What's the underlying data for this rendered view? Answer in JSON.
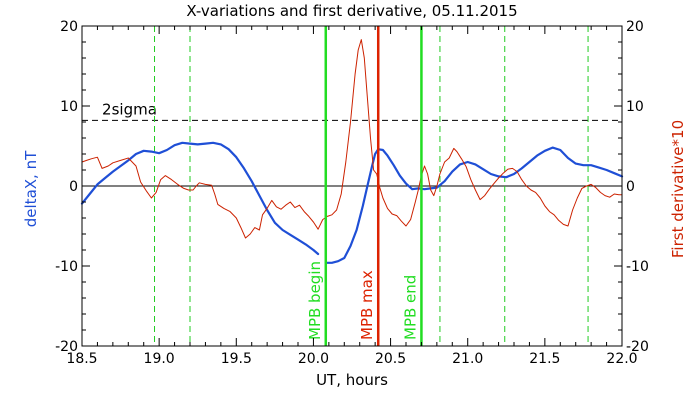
{
  "chart_data": {
    "type": "line",
    "title": "X-variations and first derivative, 05.11.2015",
    "xlabel": "UT, hours",
    "ylabel_left": "deltaX, nT",
    "ylabel_right": "First derivative*10",
    "xlim": [
      18.5,
      22.0
    ],
    "ylim": [
      -20,
      20
    ],
    "x_ticks": [
      "18.5",
      "19.0",
      "19.5",
      "20.0",
      "20.5",
      "21.0",
      "21.5",
      "22.0"
    ],
    "y_ticks_left": [
      "-20",
      "-10",
      "0",
      "10",
      "20"
    ],
    "y_ticks_right": [
      "-20",
      "-10",
      "0",
      "10",
      "20"
    ],
    "zero_line": 0,
    "threshold": {
      "label": "2sigma",
      "value": 8.2,
      "style": "dashed",
      "color": "#000000"
    },
    "colors": {
      "deltaX": "#1f4fd6",
      "derivative": "#cc2200",
      "mpb_boundary": "#22dd22",
      "mpb_max": "#dd2200",
      "green_dashed": "#22cc22"
    },
    "green_dashed_lines": [
      18.97,
      19.2,
      20.82,
      21.24,
      21.78
    ],
    "markers": [
      {
        "label": "MPB begin",
        "x": 20.08,
        "color": "#22dd22"
      },
      {
        "label": "MPB max",
        "x": 20.42,
        "color": "#dd2200"
      },
      {
        "label": "MPB end",
        "x": 20.7,
        "color": "#22dd22"
      }
    ],
    "series": [
      {
        "key": "deltaX",
        "axis": "left",
        "color": "#1f4fd6",
        "segments": [
          [
            [
              18.5,
              -2.2
            ],
            [
              18.55,
              -1.0
            ],
            [
              18.6,
              0.2
            ],
            [
              18.65,
              1.0
            ],
            [
              18.7,
              1.8
            ],
            [
              18.75,
              2.5
            ],
            [
              18.8,
              3.2
            ],
            [
              18.85,
              4.0
            ],
            [
              18.9,
              4.4
            ],
            [
              18.95,
              4.3
            ],
            [
              19.0,
              4.1
            ],
            [
              19.05,
              4.5
            ],
            [
              19.1,
              5.1
            ],
            [
              19.15,
              5.4
            ],
            [
              19.2,
              5.3
            ],
            [
              19.25,
              5.2
            ],
            [
              19.3,
              5.3
            ],
            [
              19.35,
              5.4
            ],
            [
              19.4,
              5.2
            ],
            [
              19.45,
              4.6
            ],
            [
              19.5,
              3.6
            ],
            [
              19.55,
              2.2
            ],
            [
              19.6,
              0.6
            ],
            [
              19.65,
              -1.2
            ],
            [
              19.7,
              -3.0
            ],
            [
              19.75,
              -4.6
            ],
            [
              19.8,
              -5.5
            ],
            [
              19.85,
              -6.1
            ],
            [
              19.9,
              -6.7
            ],
            [
              19.95,
              -7.3
            ],
            [
              20.0,
              -8.0
            ],
            [
              20.03,
              -8.5
            ]
          ],
          [
            [
              20.08,
              -9.6
            ],
            [
              20.12,
              -9.6
            ],
            [
              20.16,
              -9.4
            ],
            [
              20.2,
              -9.0
            ],
            [
              20.24,
              -7.5
            ],
            [
              20.28,
              -5.5
            ],
            [
              20.32,
              -2.5
            ],
            [
              20.35,
              0.0
            ],
            [
              20.38,
              2.5
            ],
            [
              20.4,
              4.0
            ],
            [
              20.42,
              4.6
            ],
            [
              20.45,
              4.5
            ],
            [
              20.48,
              3.8
            ],
            [
              20.52,
              2.6
            ],
            [
              20.56,
              1.3
            ],
            [
              20.6,
              0.3
            ],
            [
              20.64,
              -0.4
            ],
            [
              20.68,
              -0.3
            ],
            [
              20.72,
              -0.4
            ],
            [
              20.76,
              -0.3
            ],
            [
              20.8,
              -0.2
            ],
            [
              20.85,
              0.6
            ],
            [
              20.9,
              1.8
            ],
            [
              20.95,
              2.7
            ],
            [
              21.0,
              3.0
            ],
            [
              21.05,
              2.7
            ],
            [
              21.1,
              2.1
            ],
            [
              21.15,
              1.5
            ],
            [
              21.2,
              1.2
            ],
            [
              21.25,
              1.1
            ],
            [
              21.3,
              1.5
            ],
            [
              21.35,
              2.2
            ],
            [
              21.4,
              3.0
            ],
            [
              21.45,
              3.8
            ],
            [
              21.5,
              4.4
            ],
            [
              21.55,
              4.8
            ],
            [
              21.6,
              4.5
            ],
            [
              21.65,
              3.5
            ],
            [
              21.7,
              2.8
            ],
            [
              21.75,
              2.6
            ],
            [
              21.8,
              2.6
            ],
            [
              21.85,
              2.3
            ],
            [
              21.9,
              2.0
            ],
            [
              21.95,
              1.6
            ],
            [
              22.0,
              1.2
            ]
          ]
        ]
      },
      {
        "key": "derivative",
        "axis": "right",
        "color": "#cc2200",
        "segments": [
          [
            [
              18.5,
              3.0
            ],
            [
              18.53,
              3.2
            ],
            [
              18.56,
              3.4
            ],
            [
              18.6,
              3.6
            ],
            [
              18.63,
              2.2
            ],
            [
              18.67,
              2.5
            ],
            [
              18.7,
              2.9
            ],
            [
              18.75,
              3.2
            ],
            [
              18.8,
              3.5
            ],
            [
              18.85,
              2.5
            ],
            [
              18.88,
              0.5
            ],
            [
              18.92,
              -0.7
            ],
            [
              18.95,
              -1.5
            ],
            [
              18.98,
              -0.8
            ],
            [
              19.01,
              0.8
            ],
            [
              19.04,
              1.3
            ],
            [
              19.08,
              0.8
            ],
            [
              19.12,
              0.2
            ],
            [
              19.16,
              -0.3
            ],
            [
              19.19,
              -0.5
            ],
            [
              19.22,
              -0.5
            ],
            [
              19.24,
              0.0
            ],
            [
              19.26,
              0.4
            ],
            [
              19.3,
              0.2
            ],
            [
              19.34,
              0.1
            ],
            [
              19.36,
              -1.0
            ],
            [
              19.38,
              -2.3
            ],
            [
              19.42,
              -2.8
            ],
            [
              19.46,
              -3.2
            ],
            [
              19.5,
              -4.0
            ],
            [
              19.53,
              -5.2
            ],
            [
              19.56,
              -6.5
            ],
            [
              19.59,
              -6.0
            ],
            [
              19.62,
              -5.2
            ],
            [
              19.65,
              -5.5
            ],
            [
              19.67,
              -3.6
            ],
            [
              19.7,
              -2.8
            ],
            [
              19.73,
              -1.8
            ],
            [
              19.76,
              -2.6
            ],
            [
              19.79,
              -2.9
            ],
            [
              19.82,
              -2.4
            ],
            [
              19.85,
              -2.0
            ],
            [
              19.88,
              -2.7
            ],
            [
              19.91,
              -2.4
            ],
            [
              19.94,
              -3.2
            ],
            [
              19.97,
              -3.8
            ],
            [
              20.0,
              -4.5
            ],
            [
              20.03,
              -5.4
            ],
            [
              20.06,
              -4.2
            ],
            [
              20.09,
              -3.8
            ],
            [
              20.12,
              -3.6
            ],
            [
              20.15,
              -3.0
            ],
            [
              20.18,
              -1.0
            ],
            [
              20.21,
              3.0
            ],
            [
              20.24,
              8.0
            ],
            [
              20.27,
              14.0
            ],
            [
              20.29,
              17.0
            ],
            [
              20.31,
              18.3
            ],
            [
              20.33,
              16.0
            ],
            [
              20.35,
              11.0
            ],
            [
              20.37,
              6.0
            ],
            [
              20.39,
              2.0
            ],
            [
              20.41,
              1.5
            ],
            [
              20.43,
              -0.2
            ],
            [
              20.45,
              -1.5
            ],
            [
              20.48,
              -2.8
            ],
            [
              20.51,
              -3.5
            ],
            [
              20.54,
              -3.7
            ],
            [
              20.57,
              -4.4
            ],
            [
              20.6,
              -5.0
            ],
            [
              20.63,
              -4.2
            ],
            [
              20.66,
              -2.0
            ],
            [
              20.68,
              -0.5
            ],
            [
              20.7,
              1.3
            ],
            [
              20.72,
              2.5
            ],
            [
              20.74,
              1.5
            ],
            [
              20.76,
              -0.5
            ],
            [
              20.78,
              -1.2
            ],
            [
              20.8,
              0.0
            ],
            [
              20.82,
              1.5
            ],
            [
              20.85,
              3.0
            ],
            [
              20.88,
              3.5
            ],
            [
              20.91,
              4.7
            ],
            [
              20.93,
              4.3
            ],
            [
              20.96,
              3.4
            ],
            [
              20.99,
              2.4
            ],
            [
              21.02,
              0.8
            ],
            [
              21.05,
              -0.5
            ],
            [
              21.08,
              -1.7
            ],
            [
              21.11,
              -1.2
            ],
            [
              21.14,
              -0.4
            ],
            [
              21.17,
              0.3
            ],
            [
              21.2,
              1.0
            ],
            [
              21.23,
              1.6
            ],
            [
              21.26,
              2.1
            ],
            [
              21.29,
              2.2
            ],
            [
              21.32,
              1.8
            ],
            [
              21.35,
              0.8
            ],
            [
              21.38,
              0.0
            ],
            [
              21.41,
              -0.5
            ],
            [
              21.44,
              -0.8
            ],
            [
              21.47,
              -1.5
            ],
            [
              21.5,
              -2.5
            ],
            [
              21.53,
              -3.2
            ],
            [
              21.56,
              -3.6
            ],
            [
              21.59,
              -4.3
            ],
            [
              21.62,
              -4.8
            ],
            [
              21.65,
              -5.0
            ],
            [
              21.68,
              -3.0
            ],
            [
              21.71,
              -1.5
            ],
            [
              21.74,
              -0.3
            ],
            [
              21.77,
              0.0
            ],
            [
              21.8,
              0.2
            ],
            [
              21.83,
              -0.2
            ],
            [
              21.86,
              -0.8
            ],
            [
              21.89,
              -1.2
            ],
            [
              21.92,
              -1.4
            ],
            [
              21.95,
              -1.0
            ],
            [
              21.98,
              -1.1
            ],
            [
              22.0,
              -1.1
            ]
          ]
        ]
      }
    ]
  }
}
